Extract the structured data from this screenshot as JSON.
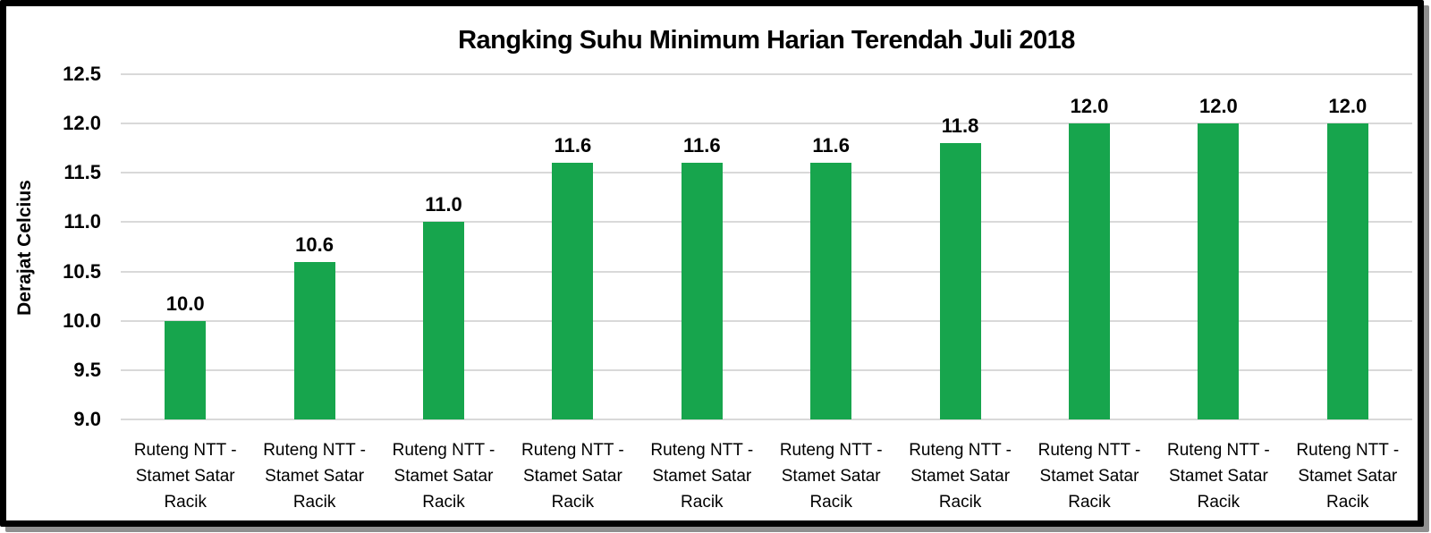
{
  "chart_data": {
    "type": "bar",
    "title": "Rangking Suhu Minimum Harian Terendah Juli 2018",
    "xlabel": "",
    "ylabel": "Derajat Celcius",
    "ylim": [
      9.0,
      12.5
    ],
    "ytick_step": 0.5,
    "yticks": [
      9.0,
      9.5,
      10.0,
      10.5,
      11.0,
      11.5,
      12.0,
      12.5
    ],
    "ytick_labels": [
      "9.0",
      "9.5",
      "10.0",
      "10.5",
      "11.0",
      "11.5",
      "12.0",
      "12.5"
    ],
    "grid": true,
    "legend_position": "none",
    "categories": [
      [
        "Ruteng NTT -",
        "Stamet Satar",
        "Racik"
      ],
      [
        "Ruteng NTT -",
        "Stamet Satar",
        "Racik"
      ],
      [
        "Ruteng NTT -",
        "Stamet Satar",
        "Racik"
      ],
      [
        "Ruteng NTT -",
        "Stamet Satar",
        "Racik"
      ],
      [
        "Ruteng NTT -",
        "Stamet Satar",
        "Racik"
      ],
      [
        "Ruteng NTT -",
        "Stamet Satar",
        "Racik"
      ],
      [
        "Ruteng NTT -",
        "Stamet Satar",
        "Racik"
      ],
      [
        "Ruteng NTT -",
        "Stamet Satar",
        "Racik"
      ],
      [
        "Ruteng NTT -",
        "Stamet Satar",
        "Racik"
      ],
      [
        "Ruteng NTT -",
        "Stamet Satar",
        "Racik"
      ]
    ],
    "values": [
      10.0,
      10.6,
      11.0,
      11.6,
      11.6,
      11.6,
      11.8,
      12.0,
      12.0,
      12.0
    ],
    "value_labels": [
      "10.0",
      "10.6",
      "11.0",
      "11.6",
      "11.6",
      "11.6",
      "11.8",
      "12.0",
      "12.0",
      "12.0"
    ],
    "colors": {
      "bar": "#17a54d",
      "gridline": "#d9d9d9",
      "text": "#000000",
      "frame_border": "#000000",
      "frame_shadow": "#8f8f8f",
      "background": "#ffffff"
    }
  }
}
